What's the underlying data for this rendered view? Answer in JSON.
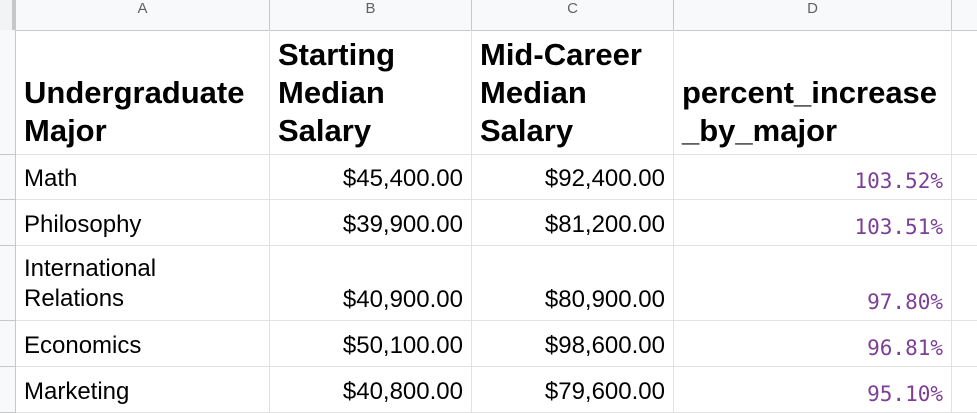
{
  "columns": [
    "A",
    "B",
    "C",
    "D"
  ],
  "headers": {
    "a": "Undergraduate Major",
    "b": "Starting Median Salary",
    "c": "Mid-Career Median Salary",
    "d": "percent_increase _by_major"
  },
  "rows": [
    {
      "major": "Math",
      "start": "$45,400.00",
      "mid": "$92,400.00",
      "pct": "103.52%"
    },
    {
      "major": "Philosophy",
      "start": "$39,900.00",
      "mid": "$81,200.00",
      "pct": "103.51%"
    },
    {
      "major": "International Relations",
      "start": "$40,900.00",
      "mid": "$80,900.00",
      "pct": "97.80%"
    },
    {
      "major": "Economics",
      "start": "$50,100.00",
      "mid": "$98,600.00",
      "pct": "96.81%"
    },
    {
      "major": "Marketing",
      "start": "$40,800.00",
      "mid": "$79,600.00",
      "pct": "95.10%"
    }
  ],
  "colors": {
    "percent_text": "#7b3f98"
  }
}
